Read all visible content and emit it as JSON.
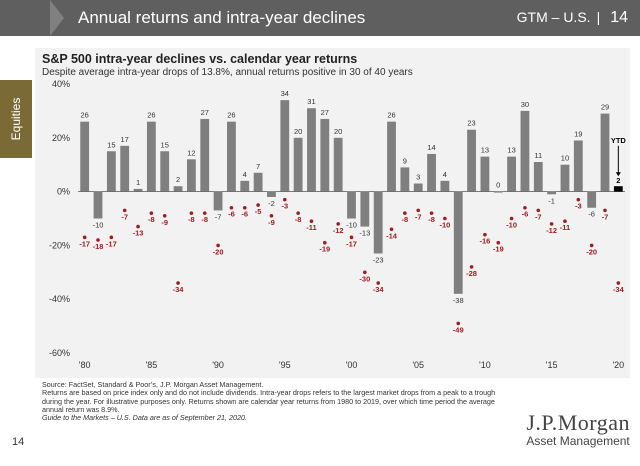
{
  "header": {
    "title": "Annual returns and intra-year declines",
    "region": "GTM – U.S.",
    "page_number": "14"
  },
  "side_tab": {
    "label": "Equities",
    "color": "#7a6a35"
  },
  "chart_data": {
    "type": "bar",
    "title": "S&P 500 intra-year declines vs. calendar year returns",
    "subtitle": "Despite average intra-year drops of 13.8%, annual returns positive in 30 of 40 years",
    "categories": [
      1980,
      1981,
      1982,
      1983,
      1984,
      1985,
      1986,
      1987,
      1988,
      1989,
      1990,
      1991,
      1992,
      1993,
      1994,
      1995,
      1996,
      1997,
      1998,
      1999,
      2000,
      2001,
      2002,
      2003,
      2004,
      2005,
      2006,
      2007,
      2008,
      2009,
      2010,
      2011,
      2012,
      2013,
      2014,
      2015,
      2016,
      2017,
      2018,
      2019
    ],
    "series": [
      {
        "values": [
          26,
          -10,
          15,
          17,
          1,
          26,
          15,
          2,
          12,
          27,
          -7,
          26,
          4,
          7,
          -2,
          34,
          20,
          31,
          27,
          20,
          -10,
          -13,
          -23,
          26,
          9,
          3,
          14,
          4,
          -38,
          23,
          13,
          0,
          13,
          30,
          11,
          -1,
          10,
          19,
          -6,
          29
        ]
      },
      {
        "values": [
          -17,
          -18,
          -17,
          -7,
          -13,
          -8,
          -9,
          -34,
          -8,
          -8,
          -20,
          -6,
          -6,
          -5,
          -9,
          -3,
          -8,
          -11,
          -19,
          -12,
          -17,
          -30,
          -34,
          -14,
          -8,
          -7,
          -8,
          -10,
          -49,
          -28,
          -16,
          -19,
          -10,
          -6,
          -7,
          -12,
          -11,
          -3,
          -20,
          -7
        ]
      }
    ],
    "ytd": {
      "label": "YTD",
      "return": 2,
      "decline": -34
    },
    "x_tick_labels": [
      "'80",
      "'85",
      "'90",
      "'95",
      "'00",
      "'05",
      "'10",
      "'15",
      "'20"
    ],
    "y_tick_labels": [
      "40%",
      "20%",
      "0%",
      "-20%",
      "-40%",
      "-60%"
    ],
    "ylim": [
      -60,
      40
    ],
    "bar_color": "#7f7f7f",
    "ytd_bar_color": "#000000",
    "decline_color": "#a01c1c",
    "grid": false
  },
  "footnotes": {
    "source": "Source: FactSet, Standard & Poor’s, J.P. Morgan Asset Management.",
    "note1": "Returns are based on price index only and do not include dividends. Intra-year drops refers to the largest market drops from a peak to a trough",
    "note2": "during the year. For illustrative purposes only. Returns shown are calendar year returns from 1980 to 2019, over which time period the average",
    "note3": "annual return was 8.9%.",
    "guide": "Guide to the Markets – U.S. Data are as of September 21, 2020."
  },
  "page_number": "14",
  "logo": {
    "line1": "J.P.Morgan",
    "line2": "Asset Management"
  }
}
